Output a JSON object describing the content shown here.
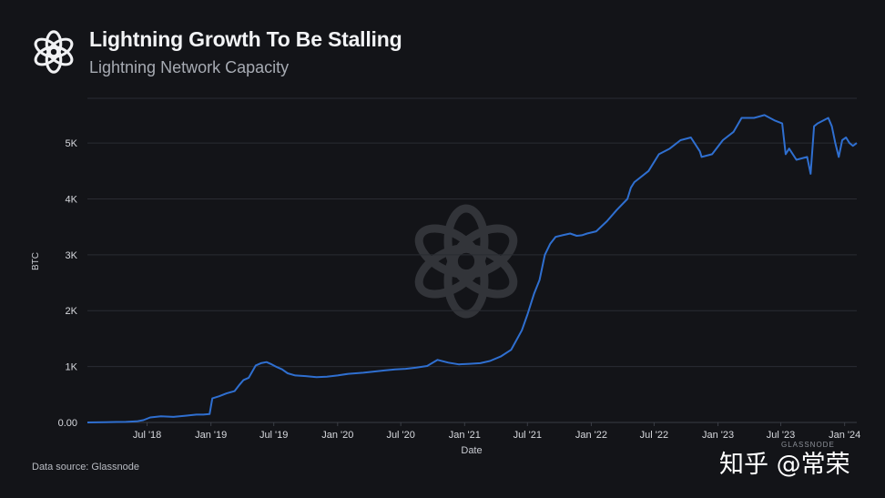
{
  "header": {
    "title": "Lightning Growth To Be Stalling",
    "subtitle": "Lightning Network Capacity"
  },
  "footer": {
    "source": "Data source: Glassnode",
    "watermark": "知乎 @常荣",
    "brand_small": "GLASSNODE"
  },
  "colors": {
    "background": "#131418",
    "line": "#2f6fd0",
    "grid": "#2a2c33",
    "text": "#d7d9de"
  },
  "chart_data": {
    "type": "line",
    "title": "Lightning Growth To Be Stalling",
    "subtitle": "Lightning Network Capacity",
    "xlabel": "Date",
    "ylabel": "BTC",
    "ylim": [
      0,
      5800
    ],
    "yticks": [
      0,
      1000,
      2000,
      3000,
      4000,
      5000
    ],
    "ytick_labels": [
      "0.00",
      "1K",
      "2K",
      "3K",
      "4K",
      "5K"
    ],
    "xticks": [
      {
        "label": "Jul '18",
        "date": "2018-07-01"
      },
      {
        "label": "Jan '19",
        "date": "2019-01-01"
      },
      {
        "label": "Jul '19",
        "date": "2019-07-01"
      },
      {
        "label": "Jan '20",
        "date": "2020-01-01"
      },
      {
        "label": "Jul '20",
        "date": "2020-07-01"
      },
      {
        "label": "Jan '21",
        "date": "2021-01-01"
      },
      {
        "label": "Jul '21",
        "date": "2021-07-01"
      },
      {
        "label": "Jan '22",
        "date": "2022-01-01"
      },
      {
        "label": "Jul '22",
        "date": "2022-07-01"
      },
      {
        "label": "Jan '23",
        "date": "2023-01-01"
      },
      {
        "label": "Jul '23",
        "date": "2023-07-01"
      },
      {
        "label": "Jan '24",
        "date": "2024-01-01"
      }
    ],
    "grid": true,
    "series": [
      {
        "name": "Lightning Network Capacity",
        "color": "#2f6fd0",
        "x": [
          "2018-01-10",
          "2018-03-01",
          "2018-05-01",
          "2018-06-01",
          "2018-06-20",
          "2018-07-10",
          "2018-08-10",
          "2018-09-15",
          "2018-10-20",
          "2018-11-20",
          "2018-12-10",
          "2018-12-28",
          "2019-01-05",
          "2019-01-25",
          "2019-02-15",
          "2019-03-10",
          "2019-03-25",
          "2019-04-05",
          "2019-04-20",
          "2019-05-10",
          "2019-05-25",
          "2019-06-10",
          "2019-06-25",
          "2019-07-10",
          "2019-07-25",
          "2019-08-10",
          "2019-09-01",
          "2019-10-01",
          "2019-11-01",
          "2019-12-01",
          "2020-01-01",
          "2020-02-01",
          "2020-03-15",
          "2020-04-15",
          "2020-05-15",
          "2020-06-15",
          "2020-07-15",
          "2020-08-15",
          "2020-09-15",
          "2020-10-15",
          "2020-11-15",
          "2020-12-15",
          "2021-01-15",
          "2021-02-15",
          "2021-03-15",
          "2021-04-15",
          "2021-05-15",
          "2021-06-15",
          "2021-07-01",
          "2021-07-20",
          "2021-08-05",
          "2021-08-20",
          "2021-09-05",
          "2021-09-20",
          "2021-10-10",
          "2021-11-01",
          "2021-11-20",
          "2021-12-05",
          "2021-12-20",
          "2022-01-15",
          "2022-02-15",
          "2022-03-15",
          "2022-04-15",
          "2022-04-25",
          "2022-05-05",
          "2022-06-15",
          "2022-07-15",
          "2022-08-15",
          "2022-09-15",
          "2022-10-15",
          "2022-11-10",
          "2022-11-15",
          "2022-12-15",
          "2023-01-15",
          "2023-02-15",
          "2023-03-01",
          "2023-03-10",
          "2023-04-15",
          "2023-05-15",
          "2023-06-15",
          "2023-07-05",
          "2023-07-15",
          "2023-07-25",
          "2023-08-15",
          "2023-09-15",
          "2023-09-25",
          "2023-10-05",
          "2023-10-15",
          "2023-11-15",
          "2023-11-25",
          "2023-12-05",
          "2023-12-15",
          "2023-12-25",
          "2024-01-05",
          "2024-01-15",
          "2024-01-25",
          "2024-02-05"
        ],
        "y": [
          0,
          5,
          10,
          20,
          40,
          90,
          110,
          100,
          120,
          140,
          140,
          150,
          430,
          470,
          520,
          560,
          680,
          760,
          800,
          1020,
          1060,
          1080,
          1040,
          990,
          950,
          880,
          840,
          830,
          810,
          820,
          840,
          870,
          890,
          910,
          930,
          950,
          960,
          980,
          1010,
          1120,
          1070,
          1040,
          1050,
          1060,
          1100,
          1180,
          1300,
          1650,
          1930,
          2300,
          2550,
          3000,
          3200,
          3320,
          3350,
          3380,
          3340,
          3350,
          3380,
          3420,
          3600,
          3800,
          4000,
          4200,
          4300,
          4500,
          4800,
          4900,
          5050,
          5100,
          4850,
          4750,
          4800,
          5050,
          5200,
          5350,
          5450,
          5450,
          5500,
          5400,
          5350,
          4800,
          4900,
          4700,
          4750,
          4450,
          5300,
          5350,
          5450,
          5300,
          5000,
          4750,
          5050,
          5100,
          5000,
          4950,
          5000
        ]
      }
    ]
  }
}
